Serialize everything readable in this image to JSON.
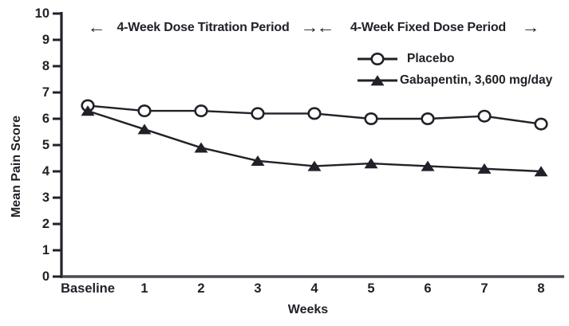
{
  "figure": {
    "glyphs": {
      "left_arrow": "←",
      "right_arrow": "→"
    }
  },
  "chart_data": {
    "type": "line",
    "title": "",
    "ylabel": "Mean Pain Score",
    "xlabel": "Weeks",
    "categories": [
      "Baseline",
      "1",
      "2",
      "3",
      "4",
      "5",
      "6",
      "7",
      "8"
    ],
    "yticks": [
      0,
      1,
      2,
      3,
      4,
      5,
      6,
      7,
      8,
      9,
      10
    ],
    "ylim": [
      0,
      10
    ],
    "grid": false,
    "legend_position": "top-right-inside",
    "ink_color": "#212129",
    "series": [
      {
        "name": "Placebo",
        "marker": "open-circle",
        "values": [
          6.5,
          6.3,
          6.3,
          6.2,
          6.2,
          6.0,
          6.0,
          6.1,
          5.8
        ]
      },
      {
        "name": "Gabapentin, 3,600 mg/day",
        "marker": "filled-triangle",
        "values": [
          6.3,
          5.6,
          4.9,
          4.4,
          4.2,
          4.3,
          4.2,
          4.1,
          4.0
        ]
      }
    ],
    "annotations": [
      {
        "text": "4-Week Dose Titration Period",
        "x_span": [
          "Baseline",
          "4"
        ]
      },
      {
        "text": "4-Week Fixed Dose Period",
        "x_span": [
          "4",
          "8"
        ]
      }
    ]
  }
}
